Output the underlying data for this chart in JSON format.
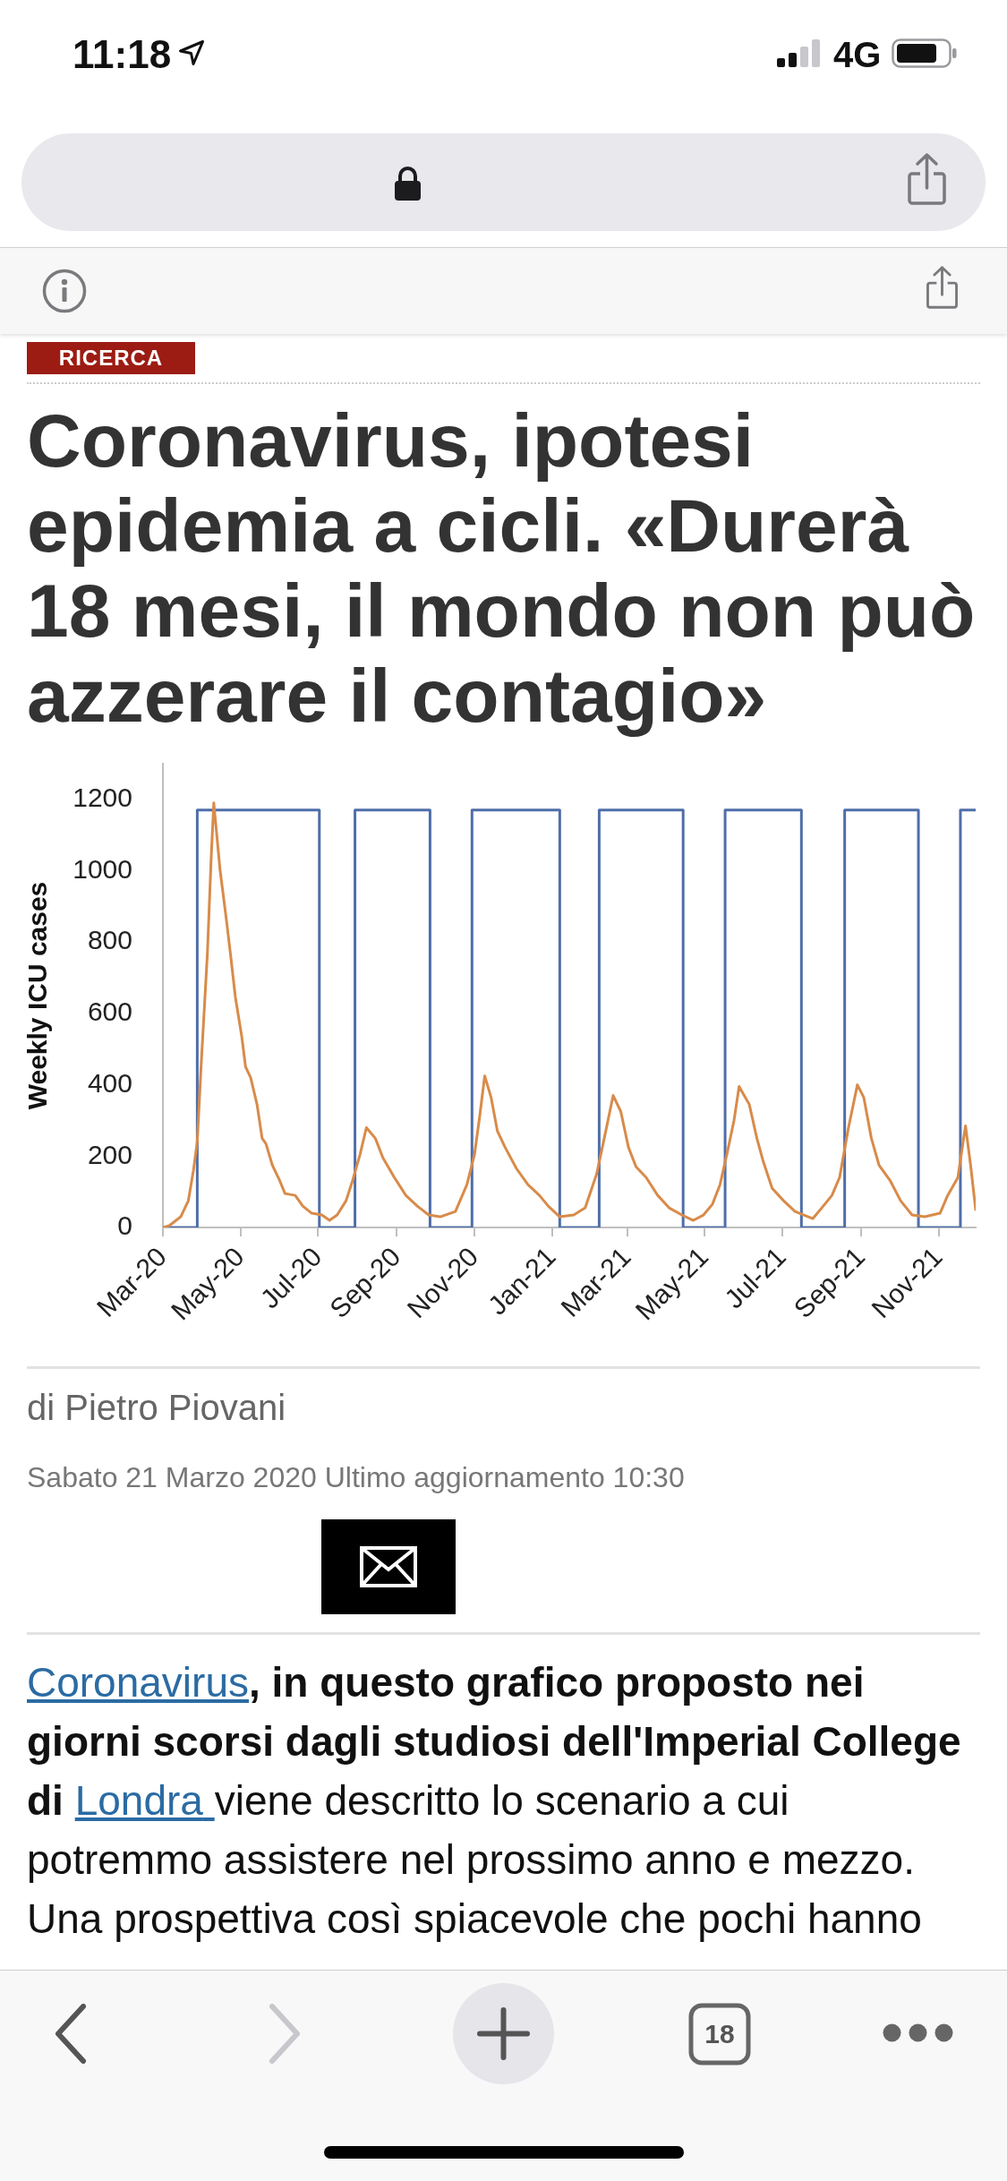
{
  "chart_data": {
    "type": "line",
    "title": "Coronavirus, ipotesi epidemia a cicli. «Durerà 18 mesi, il mondo non può azzerare il contagio»",
    "ylabel": "Weekly ICU cases",
    "xlim": [
      "2020-03-01",
      "2021-11-30"
    ],
    "xticks": [
      {
        "value": "2020-03-01",
        "label": "Mar-20"
      },
      {
        "value": "2020-05-01",
        "label": "May-20"
      },
      {
        "value": "2020-07-01",
        "label": "Jul-20"
      },
      {
        "value": "2020-09-01",
        "label": "Sep-20"
      },
      {
        "value": "2020-11-01",
        "label": "Nov-20"
      },
      {
        "value": "2021-01-01",
        "label": "Jan-21"
      },
      {
        "value": "2021-03-01",
        "label": "Mar-21"
      },
      {
        "value": "2021-05-01",
        "label": "May-21"
      },
      {
        "value": "2021-07-01",
        "label": "Jul-21"
      },
      {
        "value": "2021-09-01",
        "label": "Sep-21"
      },
      {
        "value": "2021-11-01",
        "label": "Nov-21"
      }
    ],
    "ylim": [
      0,
      1300
    ],
    "yticks": [
      0,
      200,
      400,
      600,
      800,
      1000,
      1200
    ],
    "series": [
      {
        "type": "step",
        "color": "#4f6ea9",
        "x": [
          "2020-03-01",
          "2020-03-28",
          "2020-07-02",
          "2020-07-30",
          "2020-09-27",
          "2020-10-30",
          "2021-01-07",
          "2021-02-07",
          "2021-04-14",
          "2021-05-17",
          "2021-07-16",
          "2021-08-19",
          "2021-10-16",
          "2021-11-18",
          "2021-11-30"
        ],
        "values": [
          0,
          1170,
          0,
          1170,
          0,
          1170,
          0,
          1170,
          0,
          1170,
          0,
          1170,
          0,
          1170,
          1170
        ]
      },
      {
        "type": "line",
        "color": "#d88b4a",
        "x": [
          "2020-03-01",
          "2020-03-06",
          "2020-03-15",
          "2020-03-21",
          "2020-03-25",
          "2020-03-28",
          "2020-03-31",
          "2020-04-05",
          "2020-04-08",
          "2020-04-10",
          "2020-04-15",
          "2020-04-20",
          "2020-04-23",
          "2020-04-27",
          "2020-05-02",
          "2020-05-05",
          "2020-05-09",
          "2020-05-14",
          "2020-05-18",
          "2020-05-21",
          "2020-05-26",
          "2020-06-01",
          "2020-06-05",
          "2020-06-13",
          "2020-06-19",
          "2020-06-26",
          "2020-07-04",
          "2020-07-10",
          "2020-07-16",
          "2020-07-23",
          "2020-07-28",
          "2020-08-03",
          "2020-08-08",
          "2020-08-15",
          "2020-08-21",
          "2020-08-30",
          "2020-09-08",
          "2020-09-17",
          "2020-09-26",
          "2020-10-05",
          "2020-10-17",
          "2020-10-26",
          "2020-11-01",
          "2020-11-05",
          "2020-11-09",
          "2020-11-14",
          "2020-11-19",
          "2020-11-25",
          "2020-12-04",
          "2020-12-13",
          "2020-12-22",
          "2020-12-29",
          "2021-01-07",
          "2021-01-18",
          "2021-01-27",
          "2021-02-05",
          "2021-02-11",
          "2021-02-18",
          "2021-02-24",
          "2021-03-02",
          "2021-03-08",
          "2021-03-16",
          "2021-03-25",
          "2021-04-03",
          "2021-04-13",
          "2021-04-22",
          "2021-04-30",
          "2021-05-07",
          "2021-05-13",
          "2021-05-19",
          "2021-05-24",
          "2021-05-28",
          "2021-06-05",
          "2021-06-11",
          "2021-06-16",
          "2021-06-23",
          "2021-07-02",
          "2021-07-11",
          "2021-07-25",
          "2021-08-01",
          "2021-08-09",
          "2021-08-15",
          "2021-08-22",
          "2021-08-29",
          "2021-09-03",
          "2021-09-09",
          "2021-09-15",
          "2021-09-24",
          "2021-10-02",
          "2021-10-11",
          "2021-10-21",
          "2021-11-02",
          "2021-11-08",
          "2021-11-16",
          "2021-11-22",
          "2021-11-26",
          "2021-11-30"
        ],
        "values": [
          0,
          5,
          30,
          75,
          160,
          240,
          450,
          770,
          1040,
          1190,
          1000,
          860,
          770,
          645,
          535,
          450,
          420,
          345,
          250,
          235,
          175,
          130,
          95,
          90,
          60,
          40,
          35,
          20,
          35,
          75,
          130,
          205,
          280,
          250,
          195,
          140,
          90,
          60,
          35,
          30,
          45,
          120,
          205,
          310,
          425,
          365,
          270,
          225,
          165,
          120,
          90,
          60,
          30,
          35,
          55,
          150,
          250,
          370,
          325,
          225,
          170,
          140,
          90,
          55,
          35,
          20,
          35,
          65,
          120,
          215,
          300,
          395,
          345,
          250,
          185,
          110,
          75,
          45,
          25,
          55,
          90,
          140,
          280,
          400,
          365,
          250,
          175,
          130,
          75,
          35,
          30,
          40,
          90,
          140,
          285,
          175,
          50
        ]
      }
    ],
    "annotations": [
      "11:18",
      "4G",
      "RICERCA",
      "di Pietro Piovani",
      "Sabato 21 Marzo 2020 Ultimo aggiornamento 10:30",
      "Coronavirus",
      ", in questo grafico proposto nei",
      "giorni scorsi dagli studiosi dell'Imperial College",
      "di",
      "Londra",
      "viene descritto lo scenario a cui",
      "potremmo assistere nel prossimo anno e mezzo.",
      "Una prospettiva così spiacevole che pochi hanno",
      "18"
    ]
  }
}
